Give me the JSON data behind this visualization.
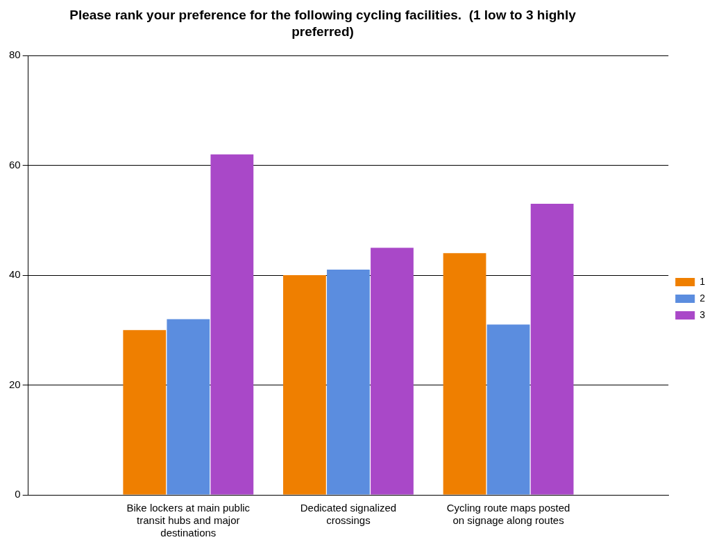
{
  "chart_data": {
    "type": "bar",
    "title": "Please rank your preference for the following cycling facilities.  (1 low to 3 highly preferred)",
    "categories": [
      "Bike lockers at main public transit hubs and major destinations",
      "Dedicated signalized crossings",
      "Cycling route maps posted on signage along routes"
    ],
    "series": [
      {
        "name": "1",
        "color": "#ef7f00",
        "values": [
          30,
          40,
          44
        ]
      },
      {
        "name": "2",
        "color": "#5b8ddf",
        "values": [
          32,
          41,
          31
        ]
      },
      {
        "name": "3",
        "color": "#a948c8",
        "values": [
          62,
          45,
          53
        ]
      }
    ],
    "ylim": [
      0,
      80
    ],
    "yticks": [
      0,
      20,
      40,
      60,
      80
    ],
    "grid": "y",
    "legend": "right"
  }
}
